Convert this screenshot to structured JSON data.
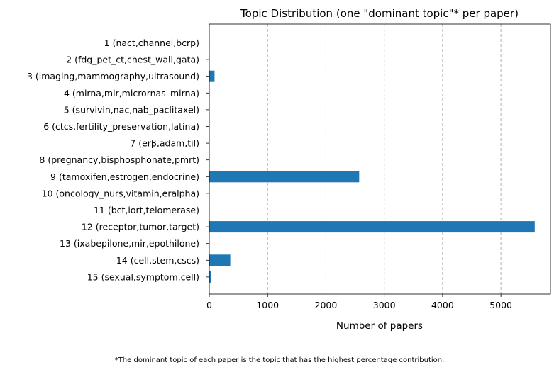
{
  "chart_data": {
    "type": "bar",
    "orientation": "horizontal",
    "title": "Topic Distribution (one \"dominant topic\"* per paper)",
    "xlabel": "Number of papers",
    "ylabel": "",
    "xlim": [
      0,
      5850
    ],
    "xticks": [
      0,
      1000,
      2000,
      3000,
      4000,
      5000
    ],
    "grid": "x-dashed",
    "bar_color": "#1f77b4",
    "categories": [
      "1 (nact,channel,bcrp)",
      "2 (fdg_pet_ct,chest_wall,gata)",
      "3 (imaging,mammography,ultrasound)",
      "4 (mirna,mir,micrornas_mirna)",
      "5 (survivin,nac,nab_paclitaxel)",
      "6 (ctcs,fertility_preservation,latina)",
      "7 (erβ,adam,til)",
      "8 (pregnancy,bisphosphonate,pmrt)",
      "9 (tamoxifen,estrogen,endocrine)",
      "10 (oncology_nurs,vitamin,eralpha)",
      "11 (bct,iort,telomerase)",
      "12 (receptor,tumor,target)",
      "13 (ixabepilone,mir,epothilone)",
      "14 (cell,stem,cscs)",
      "15 (sexual,symptom,cell)"
    ],
    "values": [
      2,
      1,
      90,
      2,
      1,
      1,
      1,
      2,
      2570,
      1,
      2,
      5580,
      1,
      360,
      25
    ]
  },
  "footnote": "*The dominant topic of each paper is the topic that has the highest percentage contribution."
}
